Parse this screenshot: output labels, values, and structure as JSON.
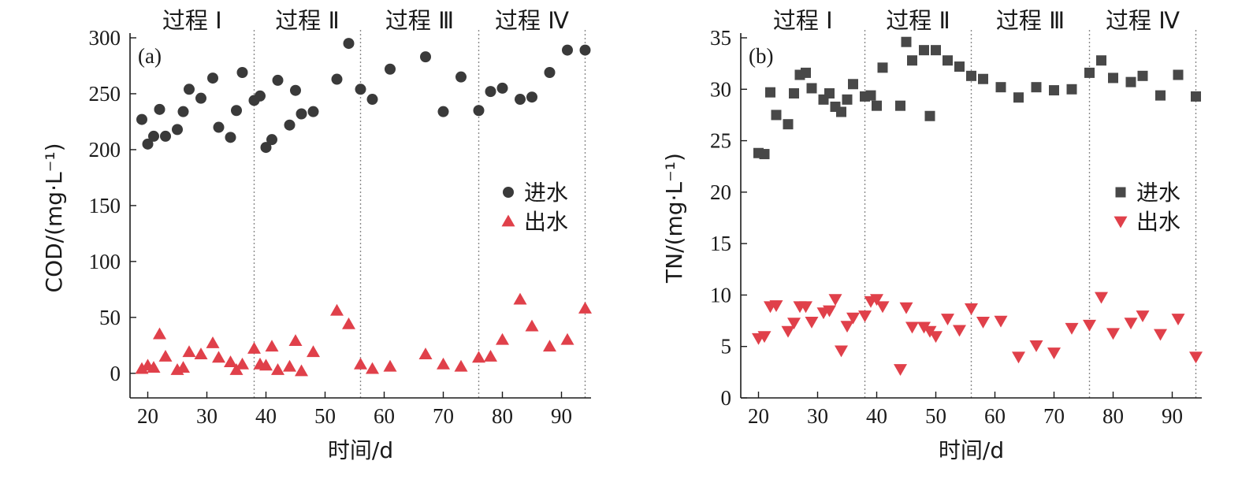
{
  "chart_data": [
    {
      "type": "scatter",
      "panel": "(a)",
      "ylabel": "COD/(mg·L⁻¹)",
      "xlabel": "时间/d",
      "xlim": [
        17,
        95
      ],
      "ylim": [
        -22,
        300
      ],
      "xticks": [
        20,
        30,
        40,
        50,
        60,
        70,
        80,
        90
      ],
      "yticks": [
        0,
        50,
        100,
        150,
        200,
        250,
        300
      ],
      "phase_boundaries": [
        38,
        56,
        76,
        94
      ],
      "phases": [
        {
          "label": "过程 Ⅰ",
          "center": 27.5
        },
        {
          "label": "过程 Ⅱ",
          "center": 47
        },
        {
          "label": "过程 Ⅲ",
          "center": 66
        },
        {
          "label": "过程 Ⅳ",
          "center": 85
        }
      ],
      "legend_position": "right",
      "series": [
        {
          "name": "进水",
          "marker": "circle",
          "color": "#3a3a3a",
          "points": [
            [
              19,
              227
            ],
            [
              20,
              205
            ],
            [
              21,
              212
            ],
            [
              22,
              236
            ],
            [
              23,
              212
            ],
            [
              25,
              218
            ],
            [
              26,
              234
            ],
            [
              27,
              254
            ],
            [
              29,
              246
            ],
            [
              31,
              264
            ],
            [
              32,
              220
            ],
            [
              34,
              211
            ],
            [
              35,
              235
            ],
            [
              36,
              269
            ],
            [
              38,
              244
            ],
            [
              39,
              248
            ],
            [
              40,
              202
            ],
            [
              41,
              209
            ],
            [
              42,
              262
            ],
            [
              44,
              222
            ],
            [
              45,
              253
            ],
            [
              46,
              232
            ],
            [
              48,
              234
            ],
            [
              52,
              263
            ],
            [
              54,
              295
            ],
            [
              56,
              254
            ],
            [
              58,
              245
            ],
            [
              61,
              272
            ],
            [
              67,
              283
            ],
            [
              70,
              234
            ],
            [
              73,
              265
            ],
            [
              76,
              235
            ],
            [
              78,
              252
            ],
            [
              80,
              255
            ],
            [
              83,
              245
            ],
            [
              85,
              247
            ],
            [
              88,
              269
            ],
            [
              91,
              289
            ],
            [
              94,
              289
            ]
          ]
        },
        {
          "name": "出水",
          "marker": "triangle-up",
          "color": "#e0404a",
          "points": [
            [
              19,
              4
            ],
            [
              20,
              7
            ],
            [
              21,
              5
            ],
            [
              22,
              35
            ],
            [
              23,
              15
            ],
            [
              25,
              3
            ],
            [
              26,
              5
            ],
            [
              27,
              19
            ],
            [
              29,
              17
            ],
            [
              31,
              27
            ],
            [
              32,
              14
            ],
            [
              34,
              10
            ],
            [
              35,
              3
            ],
            [
              36,
              8
            ],
            [
              38,
              22
            ],
            [
              39,
              8
            ],
            [
              40,
              7
            ],
            [
              41,
              24
            ],
            [
              42,
              3
            ],
            [
              44,
              6
            ],
            [
              45,
              29
            ],
            [
              46,
              2
            ],
            [
              48,
              19
            ],
            [
              52,
              56
            ],
            [
              54,
              44
            ],
            [
              56,
              8
            ],
            [
              58,
              4
            ],
            [
              61,
              6
            ],
            [
              67,
              17
            ],
            [
              70,
              8
            ],
            [
              73,
              6
            ],
            [
              76,
              14
            ],
            [
              78,
              15
            ],
            [
              80,
              30
            ],
            [
              83,
              66
            ],
            [
              85,
              42
            ],
            [
              88,
              24
            ],
            [
              91,
              30
            ],
            [
              94,
              58
            ]
          ]
        }
      ]
    },
    {
      "type": "scatter",
      "panel": "(b)",
      "ylabel": "TN/(mg·L⁻¹)",
      "xlabel": "时间/d",
      "xlim": [
        17,
        95
      ],
      "ylim": [
        0,
        35
      ],
      "xticks": [
        20,
        30,
        40,
        50,
        60,
        70,
        80,
        90
      ],
      "yticks": [
        0,
        5,
        10,
        15,
        20,
        25,
        30,
        35
      ],
      "phase_boundaries": [
        38,
        56,
        76,
        94
      ],
      "phases": [
        {
          "label": "过程 Ⅰ",
          "center": 27.5
        },
        {
          "label": "过程 Ⅱ",
          "center": 47
        },
        {
          "label": "过程 Ⅲ",
          "center": 66
        },
        {
          "label": "过程 Ⅳ",
          "center": 85
        }
      ],
      "legend_position": "right",
      "series": [
        {
          "name": "进水",
          "marker": "square",
          "color": "#484848",
          "points": [
            [
              20,
              23.8
            ],
            [
              21,
              23.7
            ],
            [
              22,
              29.7
            ],
            [
              23,
              27.5
            ],
            [
              25,
              26.6
            ],
            [
              26,
              29.6
            ],
            [
              27,
              31.4
            ],
            [
              28,
              31.6
            ],
            [
              29,
              30.1
            ],
            [
              31,
              29.0
            ],
            [
              32,
              29.6
            ],
            [
              33,
              28.3
            ],
            [
              34,
              27.8
            ],
            [
              35,
              29.0
            ],
            [
              36,
              30.5
            ],
            [
              38,
              29.3
            ],
            [
              39,
              29.4
            ],
            [
              40,
              28.4
            ],
            [
              41,
              32.1
            ],
            [
              44,
              28.4
            ],
            [
              45,
              34.6
            ],
            [
              46,
              32.8
            ],
            [
              48,
              33.8
            ],
            [
              49,
              27.4
            ],
            [
              50,
              33.8
            ],
            [
              52,
              32.8
            ],
            [
              54,
              32.2
            ],
            [
              56,
              31.3
            ],
            [
              58,
              31.0
            ],
            [
              61,
              30.2
            ],
            [
              64,
              29.2
            ],
            [
              67,
              30.2
            ],
            [
              70,
              29.9
            ],
            [
              73,
              30.0
            ],
            [
              76,
              31.6
            ],
            [
              78,
              32.8
            ],
            [
              80,
              31.1
            ],
            [
              83,
              30.7
            ],
            [
              85,
              31.3
            ],
            [
              88,
              29.4
            ],
            [
              91,
              31.4
            ],
            [
              94,
              29.3
            ]
          ]
        },
        {
          "name": "出水",
          "marker": "triangle-down",
          "color": "#e0404a",
          "points": [
            [
              20,
              5.8
            ],
            [
              21,
              6.0
            ],
            [
              22,
              8.9
            ],
            [
              23,
              9.0
            ],
            [
              25,
              6.5
            ],
            [
              26,
              7.3
            ],
            [
              27,
              8.9
            ],
            [
              28,
              8.9
            ],
            [
              29,
              7.4
            ],
            [
              31,
              8.3
            ],
            [
              32,
              8.5
            ],
            [
              33,
              9.6
            ],
            [
              34,
              4.6
            ],
            [
              35,
              7.0
            ],
            [
              36,
              7.8
            ],
            [
              38,
              8.0
            ],
            [
              39,
              9.4
            ],
            [
              40,
              9.6
            ],
            [
              41,
              8.9
            ],
            [
              44,
              2.8
            ],
            [
              45,
              8.8
            ],
            [
              46,
              6.9
            ],
            [
              48,
              6.9
            ],
            [
              49,
              6.5
            ],
            [
              50,
              6.0
            ],
            [
              52,
              7.7
            ],
            [
              54,
              6.6
            ],
            [
              56,
              8.7
            ],
            [
              58,
              7.4
            ],
            [
              61,
              7.5
            ],
            [
              64,
              4.0
            ],
            [
              67,
              5.1
            ],
            [
              70,
              4.4
            ],
            [
              73,
              6.8
            ],
            [
              76,
              7.1
            ],
            [
              78,
              9.8
            ],
            [
              80,
              6.3
            ],
            [
              83,
              7.3
            ],
            [
              85,
              8.0
            ],
            [
              88,
              6.2
            ],
            [
              91,
              7.7
            ],
            [
              94,
              4.0
            ]
          ]
        }
      ]
    }
  ]
}
